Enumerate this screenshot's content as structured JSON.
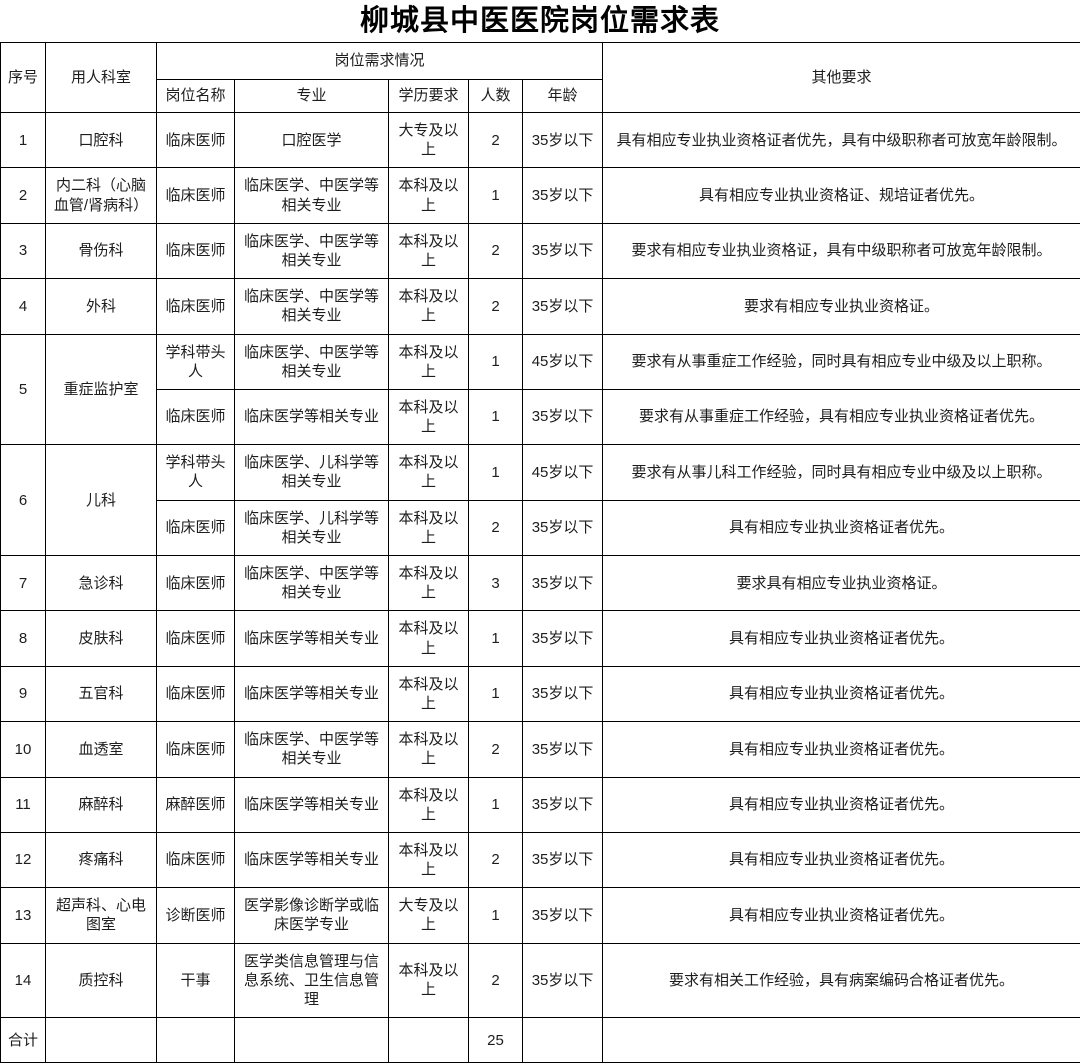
{
  "title": "柳城县中医医院岗位需求表",
  "header": {
    "seq": "序号",
    "department": "用人科室",
    "demand_group": "岗位需求情况",
    "position": "岗位名称",
    "major": "专业",
    "education": "学历要求",
    "count": "人数",
    "age": "年龄",
    "other": "其他要求"
  },
  "rows": [
    {
      "seq": "1",
      "department": "口腔科",
      "positions": [
        {
          "position": "临床医师",
          "major": "口腔医学",
          "education": "大专及以上",
          "count": "2",
          "age": "35岁以下",
          "other": "具有相应专业执业资格证者优先，具有中级职称者可放宽年龄限制。"
        }
      ]
    },
    {
      "seq": "2",
      "department": "内二科（心脑血管/肾病科）",
      "positions": [
        {
          "position": "临床医师",
          "major": "临床医学、中医学等相关专业",
          "education": "本科及以上",
          "count": "1",
          "age": "35岁以下",
          "other": "具有相应专业执业资格证、规培证者优先。"
        }
      ]
    },
    {
      "seq": "3",
      "department": "骨伤科",
      "positions": [
        {
          "position": "临床医师",
          "major": "临床医学、中医学等相关专业",
          "education": "本科及以上",
          "count": "2",
          "age": "35岁以下",
          "other": "要求有相应专业执业资格证，具有中级职称者可放宽年龄限制。"
        }
      ]
    },
    {
      "seq": "4",
      "department": "外科",
      "positions": [
        {
          "position": "临床医师",
          "major": "临床医学、中医学等相关专业",
          "education": "本科及以上",
          "count": "2",
          "age": "35岁以下",
          "other": "要求有相应专业执业资格证。"
        }
      ]
    },
    {
      "seq": "5",
      "department": "重症监护室",
      "positions": [
        {
          "position": "学科带头人",
          "major": "临床医学、中医学等相关专业",
          "education": "本科及以上",
          "count": "1",
          "age": "45岁以下",
          "other": "要求有从事重症工作经验，同时具有相应专业中级及以上职称。"
        },
        {
          "position": "临床医师",
          "major": "临床医学等相关专业",
          "education": "本科及以上",
          "count": "1",
          "age": "35岁以下",
          "other": "要求有从事重症工作经验，具有相应专业执业资格证者优先。"
        }
      ]
    },
    {
      "seq": "6",
      "department": "儿科",
      "positions": [
        {
          "position": "学科带头人",
          "major": "临床医学、儿科学等相关专业",
          "education": "本科及以上",
          "count": "1",
          "age": "45岁以下",
          "other": "要求有从事儿科工作经验，同时具有相应专业中级及以上职称。"
        },
        {
          "position": "临床医师",
          "major": "临床医学、儿科学等相关专业",
          "education": "本科及以上",
          "count": "2",
          "age": "35岁以下",
          "other": "具有相应专业执业资格证者优先。"
        }
      ]
    },
    {
      "seq": "7",
      "department": "急诊科",
      "positions": [
        {
          "position": "临床医师",
          "major": "临床医学、中医学等相关专业",
          "education": "本科及以上",
          "count": "3",
          "age": "35岁以下",
          "other": "要求具有相应专业执业资格证。"
        }
      ]
    },
    {
      "seq": "8",
      "department": "皮肤科",
      "positions": [
        {
          "position": "临床医师",
          "major": "临床医学等相关专业",
          "education": "本科及以上",
          "count": "1",
          "age": "35岁以下",
          "other": "具有相应专业执业资格证者优先。"
        }
      ]
    },
    {
      "seq": "9",
      "department": "五官科",
      "positions": [
        {
          "position": "临床医师",
          "major": "临床医学等相关专业",
          "education": "本科及以上",
          "count": "1",
          "age": "35岁以下",
          "other": "具有相应专业执业资格证者优先。"
        }
      ]
    },
    {
      "seq": "10",
      "department": "血透室",
      "positions": [
        {
          "position": "临床医师",
          "major": "临床医学、中医学等相关专业",
          "education": "本科及以上",
          "count": "2",
          "age": "35岁以下",
          "other": "具有相应专业执业资格证者优先。"
        }
      ]
    },
    {
      "seq": "11",
      "department": "麻醉科",
      "positions": [
        {
          "position": "麻醉医师",
          "major": "临床医学等相关专业",
          "education": "本科及以上",
          "count": "1",
          "age": "35岁以下",
          "other": "具有相应专业执业资格证者优先。"
        }
      ]
    },
    {
      "seq": "12",
      "department": "疼痛科",
      "positions": [
        {
          "position": "临床医师",
          "major": "临床医学等相关专业",
          "education": "本科及以上",
          "count": "2",
          "age": "35岁以下",
          "other": "具有相应专业执业资格证者优先。"
        }
      ]
    },
    {
      "seq": "13",
      "department": "超声科、心电图室",
      "positions": [
        {
          "position": "诊断医师",
          "major": "医学影像诊断学或临床医学专业",
          "education": "大专及以上",
          "count": "1",
          "age": "35岁以下",
          "other": "具有相应专业执业资格证者优先。"
        }
      ]
    },
    {
      "seq": "14",
      "department": "质控科",
      "positions": [
        {
          "position": "干事",
          "major": "医学类信息管理与信息系统、卫生信息管理",
          "education": "本科及以上",
          "count": "2",
          "age": "35岁以下",
          "other": "要求有相关工作经验，具有病案编码合格证者优先。"
        }
      ]
    }
  ],
  "total": {
    "label": "合计",
    "count": "25"
  }
}
